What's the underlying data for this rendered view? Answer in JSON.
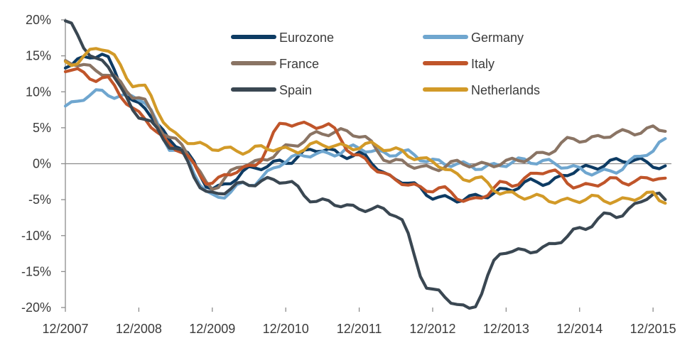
{
  "chart_data": {
    "type": "line",
    "title": "",
    "xlabel": "",
    "ylabel": "",
    "ylim": [
      -20,
      20
    ],
    "y_ticks": [
      20,
      15,
      10,
      5,
      0,
      -5,
      -10,
      -15,
      -20
    ],
    "y_tick_labels": [
      "20%",
      "15%",
      "10%",
      "5%",
      "0%",
      "-5%",
      "-10%",
      "-15%",
      "-20%"
    ],
    "x_range": [
      "12/2007",
      "03/2016"
    ],
    "x_tick_labels": [
      "12/2007",
      "12/2008",
      "12/2009",
      "12/2010",
      "12/2011",
      "12/2012",
      "12/2013",
      "12/2014",
      "12/2015"
    ],
    "grid": false,
    "legend": "top-center, 2 columns",
    "series": [
      {
        "name": "Eurozone",
        "color": "#0d3b63",
        "points": [
          [
            "12/2007",
            14
          ],
          [
            "06/2008",
            15
          ],
          [
            "12/2008",
            8
          ],
          [
            "06/2009",
            3
          ],
          [
            "12/2009",
            -3.5
          ],
          [
            "06/2010",
            -1
          ],
          [
            "12/2010",
            0.5
          ],
          [
            "06/2011",
            2
          ],
          [
            "12/2011",
            1
          ],
          [
            "06/2012",
            -2
          ],
          [
            "12/2012",
            -4.5
          ],
          [
            "06/2013",
            -5
          ],
          [
            "12/2013",
            -3.5
          ],
          [
            "06/2014",
            -2.5
          ],
          [
            "12/2014",
            -1
          ],
          [
            "06/2015",
            0.5
          ],
          [
            "12/2015",
            0
          ],
          [
            "02/2016",
            -0.3
          ]
        ]
      },
      {
        "name": "Germany",
        "color": "#6fa6cf",
        "points": [
          [
            "12/2007",
            8
          ],
          [
            "06/2008",
            10
          ],
          [
            "12/2008",
            9
          ],
          [
            "06/2009",
            2
          ],
          [
            "12/2009",
            -4.5
          ],
          [
            "06/2010",
            -3
          ],
          [
            "12/2010",
            0.5
          ],
          [
            "06/2011",
            1.5
          ],
          [
            "12/2011",
            2
          ],
          [
            "06/2012",
            1.5
          ],
          [
            "12/2012",
            0.5
          ],
          [
            "06/2013",
            -0.5
          ],
          [
            "12/2013",
            0
          ],
          [
            "06/2014",
            0.5
          ],
          [
            "12/2014",
            -1
          ],
          [
            "06/2015",
            -1
          ],
          [
            "12/2015",
            2
          ],
          [
            "02/2016",
            3.5
          ]
        ]
      },
      {
        "name": "France",
        "color": "#8a7464",
        "points": [
          [
            "12/2007",
            14
          ],
          [
            "06/2008",
            13
          ],
          [
            "12/2008",
            9
          ],
          [
            "06/2009",
            3
          ],
          [
            "12/2009",
            -3
          ],
          [
            "06/2010",
            0
          ],
          [
            "12/2010",
            2
          ],
          [
            "06/2011",
            4.5
          ],
          [
            "12/2011",
            4
          ],
          [
            "06/2012",
            0
          ],
          [
            "12/2012",
            -0.5
          ],
          [
            "06/2013",
            0
          ],
          [
            "12/2013",
            0
          ],
          [
            "06/2014",
            1.5
          ],
          [
            "12/2014",
            3.5
          ],
          [
            "06/2015",
            4
          ],
          [
            "12/2015",
            5
          ],
          [
            "02/2016",
            4.5
          ]
        ]
      },
      {
        "name": "Italy",
        "color": "#c0552a",
        "points": [
          [
            "12/2007",
            13
          ],
          [
            "06/2008",
            12
          ],
          [
            "12/2008",
            7
          ],
          [
            "06/2009",
            2
          ],
          [
            "12/2009",
            -2.5
          ],
          [
            "06/2010",
            -0.5
          ],
          [
            "12/2010",
            5.5
          ],
          [
            "06/2011",
            5.5
          ],
          [
            "12/2011",
            1
          ],
          [
            "06/2012",
            -2.5
          ],
          [
            "12/2012",
            -3.5
          ],
          [
            "06/2013",
            -5
          ],
          [
            "12/2013",
            -3
          ],
          [
            "06/2014",
            -1
          ],
          [
            "12/2014",
            -3
          ],
          [
            "06/2015",
            -2.5
          ],
          [
            "12/2015",
            -2
          ],
          [
            "02/2016",
            -2
          ]
        ]
      },
      {
        "name": "Spain",
        "color": "#3a4752",
        "points": [
          [
            "12/2007",
            19.5
          ],
          [
            "06/2008",
            14
          ],
          [
            "12/2008",
            7
          ],
          [
            "06/2009",
            2
          ],
          [
            "12/2009",
            -4.5
          ],
          [
            "06/2010",
            -2.5
          ],
          [
            "12/2010",
            -2.5
          ],
          [
            "06/2011",
            -5.5
          ],
          [
            "12/2011",
            -6
          ],
          [
            "06/2012",
            -7
          ],
          [
            "12/2012",
            -18
          ],
          [
            "06/2013",
            -20
          ],
          [
            "12/2013",
            -12
          ],
          [
            "06/2014",
            -12
          ],
          [
            "12/2014",
            -9
          ],
          [
            "06/2015",
            -7
          ],
          [
            "12/2015",
            -4.5
          ],
          [
            "02/2016",
            -5
          ]
        ]
      },
      {
        "name": "Netherlands",
        "color": "#d29a28",
        "points": [
          [
            "12/2007",
            14
          ],
          [
            "06/2008",
            16
          ],
          [
            "12/2008",
            11
          ],
          [
            "06/2009",
            4
          ],
          [
            "12/2009",
            2
          ],
          [
            "06/2010",
            2
          ],
          [
            "12/2010",
            2
          ],
          [
            "06/2011",
            2.5
          ],
          [
            "12/2011",
            2.5
          ],
          [
            "06/2012",
            2
          ],
          [
            "12/2012",
            0
          ],
          [
            "06/2013",
            -2
          ],
          [
            "12/2013",
            -4
          ],
          [
            "06/2014",
            -5
          ],
          [
            "12/2014",
            -5
          ],
          [
            "06/2015",
            -5
          ],
          [
            "12/2015",
            -4.5
          ],
          [
            "02/2016",
            -5.5
          ]
        ]
      }
    ]
  }
}
